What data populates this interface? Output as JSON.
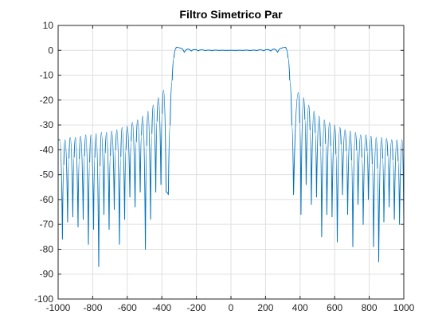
{
  "chart_data": {
    "type": "line",
    "title": "Filtro Simetrico Par",
    "xlabel": "",
    "ylabel": "",
    "xlim": [
      -1000,
      1000
    ],
    "ylim": [
      -100,
      10
    ],
    "xticks": [
      -1000,
      -800,
      -600,
      -400,
      -200,
      0,
      200,
      400,
      600,
      800,
      1000
    ],
    "yticks": [
      10,
      0,
      -10,
      -20,
      -30,
      -40,
      -50,
      -60,
      -70,
      -80,
      -90,
      -100
    ],
    "xtick_labels": [
      "-1000",
      "-800",
      "-600",
      "-400",
      "-200",
      "0",
      "200",
      "400",
      "600",
      "800",
      "1000"
    ],
    "ytick_labels": [
      "10",
      "0",
      "-10",
      "-20",
      "-30",
      "-40",
      "-50",
      "-60",
      "-70",
      "-80",
      "-90",
      "-100"
    ],
    "grid": true,
    "series": [
      {
        "color": "#0072bd",
        "passband": {
          "x": [
            -315,
            -290,
            -270,
            -250,
            -230,
            -210,
            -190,
            -170,
            -150,
            -130,
            -110,
            -90,
            -70,
            -50,
            -30,
            -10,
            10,
            30,
            50,
            70,
            90,
            110,
            130,
            150,
            170,
            190,
            210,
            230,
            250,
            270,
            290,
            315
          ],
          "y": [
            1.2,
            0.8,
            -0.8,
            0.5,
            -0.3,
            0.3,
            -0.2,
            0.2,
            -0.1,
            0.1,
            -0.1,
            0.1,
            -0.05,
            0.05,
            -0.05,
            0.0,
            0.0,
            -0.05,
            0.05,
            -0.05,
            0.1,
            -0.1,
            0.1,
            -0.1,
            0.2,
            -0.2,
            0.3,
            -0.3,
            0.5,
            -0.8,
            0.8,
            1.2
          ]
        },
        "transition": {
          "x": [
            -362,
            -352,
            -340,
            -330,
            -320,
            320,
            330,
            340,
            352,
            362
          ],
          "y": [
            -58,
            -30,
            -12,
            -3,
            0.5,
            0.5,
            -3,
            -12,
            -30,
            -58
          ]
        },
        "sidelobes": {
          "peak_x": [
            -990,
            -960,
            -930,
            -900,
            -870,
            -840,
            -810,
            -780,
            -750,
            -720,
            -690,
            -660,
            -630,
            -600,
            -570,
            -540,
            -510,
            -480,
            -450,
            -420,
            -390,
            390,
            420,
            450,
            480,
            510,
            540,
            570,
            600,
            630,
            660,
            690,
            720,
            750,
            780,
            810,
            840,
            870,
            900,
            930,
            960,
            990
          ],
          "peak_y": [
            -36,
            -36,
            -35,
            -35,
            -34.5,
            -34,
            -34,
            -33.5,
            -33,
            -33,
            -32.5,
            -32,
            -31,
            -30.5,
            -29,
            -28,
            -26.5,
            -24.5,
            -22,
            -19,
            -16,
            -17,
            -19,
            -22,
            -24.5,
            -26.5,
            -28,
            -29,
            -30,
            -31,
            -32,
            -32.5,
            -33,
            -34,
            -34,
            -34.5,
            -35,
            -35,
            -35.5,
            -36,
            -36,
            -36
          ],
          "null_x": [
            -975,
            -945,
            -915,
            -885,
            -855,
            -825,
            -795,
            -765,
            -735,
            -705,
            -675,
            -645,
            -615,
            -585,
            -555,
            -525,
            -495,
            -465,
            -435,
            -405,
            -375,
            375,
            405,
            435,
            465,
            495,
            525,
            555,
            585,
            615,
            645,
            675,
            705,
            735,
            765,
            795,
            825,
            855,
            885,
            915,
            945,
            975
          ],
          "null_y": [
            -76,
            -69,
            -67,
            -71,
            -68,
            -78,
            -72,
            -87,
            -66,
            -72,
            -64,
            -78,
            -68,
            -59,
            -63,
            -57,
            -80,
            -68,
            -57,
            -54,
            -57,
            -59,
            -66,
            -54,
            -62,
            -59,
            -75,
            -66,
            -67,
            -77,
            -58,
            -66,
            -79,
            -62,
            -70,
            -60,
            -79,
            -85,
            -69,
            -63,
            -68,
            -70
          ]
        }
      }
    ]
  }
}
